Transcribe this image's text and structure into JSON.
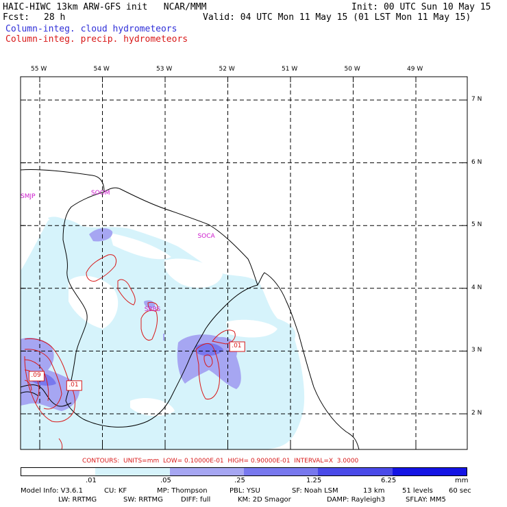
{
  "header": {
    "title": "HAIC-HIWC 13km ARW-GFS init   NCAR/MMM",
    "init": "Init: 00 UTC Sun 10 May 15",
    "fcst_label": "Fcst:",
    "fcst_value": "28 h",
    "valid": "Valid: 04 UTC Mon 11 May 15 (01 LST Mon 11 May 15)",
    "field_cloud": "Column-integ. cloud hydrometeors",
    "field_precip": "Column-integ. precip. hydrometeors"
  },
  "map": {
    "lon_labels": [
      "55 W",
      "54 W",
      "53 W",
      "52 W",
      "51 W",
      "50 W",
      "49 W"
    ],
    "lat_labels": [
      "7 N",
      "6 N",
      "5 N",
      "4 N",
      "3 N",
      "2 N"
    ],
    "lon_values": [
      -55,
      -54,
      -53,
      -52,
      -51,
      -50,
      -49
    ],
    "lat_values": [
      7,
      6,
      5,
      4,
      3,
      2
    ],
    "stations": [
      {
        "id": "SMJP",
        "lon": -55.2,
        "lat": 5.45
      },
      {
        "id": "SOOM",
        "lon": -54.05,
        "lat": 5.5
      },
      {
        "id": "SOCA",
        "lon": -52.35,
        "lat": 4.82
      },
      {
        "id": "SBBS",
        "lon": -53.2,
        "lat": 3.65
      }
    ],
    "contour_labels": [
      {
        "text": ".01",
        "lon": -51.85,
        "lat": 3.07
      },
      {
        "text": ".09",
        "lon": -55.05,
        "lat": 2.6
      },
      {
        "text": ".01",
        "lon": -54.45,
        "lat": 2.45
      }
    ],
    "colors": {
      "land": "#000000",
      "grid": "#000000",
      "shade_light": "#d6f3fb",
      "shade_mid": "#a6a6f2",
      "shade_dark": "#7878ee",
      "contour": "#d81818",
      "station": "#cc1acc"
    }
  },
  "footer": {
    "contours": "CONTOURS:  UNITS=mm  LOW= 0.10000E-01  HIGH= 0.90000E-01  INTERVAL=X  3.0000",
    "colorbar": {
      "ticks": [
        ".01",
        ".05",
        ".25",
        "1.25",
        "6.25"
      ],
      "unit": "mm",
      "colors": [
        "#ffffff",
        "#d6f3fb",
        "#a6a6f2",
        "#7878ee",
        "#4a4ae8",
        "#1414e4"
      ]
    },
    "model_info_1": [
      "Model Info: V3.6.1",
      "CU: KF",
      "MP: Thompson",
      "PBL: YSU",
      "SF: Noah LSM",
      "13 km",
      "51 levels",
      "60 sec"
    ],
    "model_info_2": [
      "LW: RRTMG",
      "SW: RRTMG",
      "DIFF: full",
      "KM: 2D Smagor",
      "DAMP: Rayleigh3",
      "SFLAY: MM5"
    ]
  }
}
